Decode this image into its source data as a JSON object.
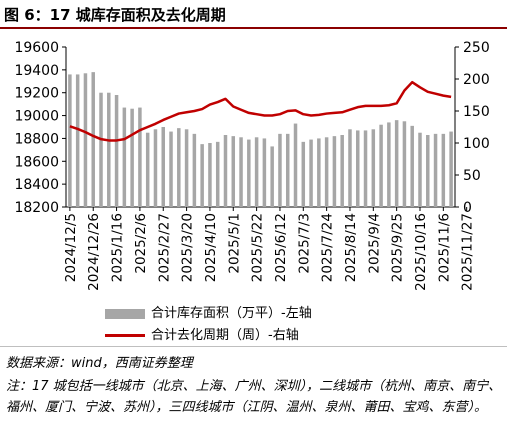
{
  "title": "图 6：17 城库存面积及去化周期",
  "legend": {
    "bar_label": "合计库存面积（万平）-左轴",
    "line_label": "合计去化周期（周）-右轴"
  },
  "source": "数据来源：wind，西南证券整理",
  "note": "注：17 城包括一线城市（北京、上海、广州、深圳），二线城市（杭州、南京、南宁、福州、厦门、宁波、苏州），三四线城市（江阴、温州、泉州、莆田、宝鸡、东营）。",
  "colors": {
    "bar": "#a6a6a6",
    "line": "#c00000",
    "title_rule": "#8b0000"
  },
  "chart_data": {
    "type": "bar",
    "title": "",
    "xlabel": "",
    "ylabel": "",
    "y_left_lim": [
      18200,
      19600
    ],
    "y_left_ticks": [
      18200,
      18400,
      18600,
      18800,
      19000,
      19200,
      19400,
      19600
    ],
    "y_right_lim": [
      0,
      250
    ],
    "y_right_ticks": [
      0,
      50,
      100,
      150,
      200,
      250
    ],
    "x_tick_labels": [
      "2024/12/5",
      "2024/12/26",
      "2025/1/16",
      "2025/2/6",
      "2025/2/27",
      "2025/3/20",
      "2025/4/10",
      "2025/5/1",
      "2025/5/22",
      "2025/6/12",
      "2025/7/3",
      "2025/7/24",
      "2025/8/14",
      "2025/9/4",
      "2025/9/25",
      "2025/10/16",
      "2025/11/6",
      "2025/11/27"
    ],
    "legend_position": "bottom",
    "grid": false,
    "series": [
      {
        "name": "合计库存面积（万平）-左轴",
        "type": "bar",
        "axis": "left",
        "values": [
          19360,
          19360,
          19370,
          19380,
          19200,
          19200,
          19180,
          19070,
          19060,
          19070,
          18850,
          18880,
          18900,
          18860,
          18890,
          18880,
          18840,
          18750,
          18760,
          18770,
          18830,
          18820,
          18810,
          18790,
          18810,
          18800,
          18730,
          18840,
          18840,
          18930,
          18770,
          18790,
          18800,
          18810,
          18820,
          18830,
          18880,
          18870,
          18870,
          18880,
          18920,
          18940,
          18960,
          18950,
          18910,
          18850,
          18830,
          18840,
          18840,
          18860
        ]
      },
      {
        "name": "合计去化周期（周）-右轴",
        "type": "line",
        "axis": "right",
        "values": [
          126,
          122,
          117,
          111,
          106,
          104,
          104,
          106,
          113,
          120,
          125,
          130,
          136,
          141,
          146,
          148,
          150,
          153,
          160,
          164,
          169,
          157,
          152,
          147,
          145,
          143,
          143,
          145,
          150,
          151,
          145,
          143,
          144,
          146,
          147,
          148,
          152,
          156,
          158,
          158,
          158,
          159,
          162,
          182,
          195,
          187,
          180,
          177,
          174,
          172
        ]
      }
    ]
  }
}
